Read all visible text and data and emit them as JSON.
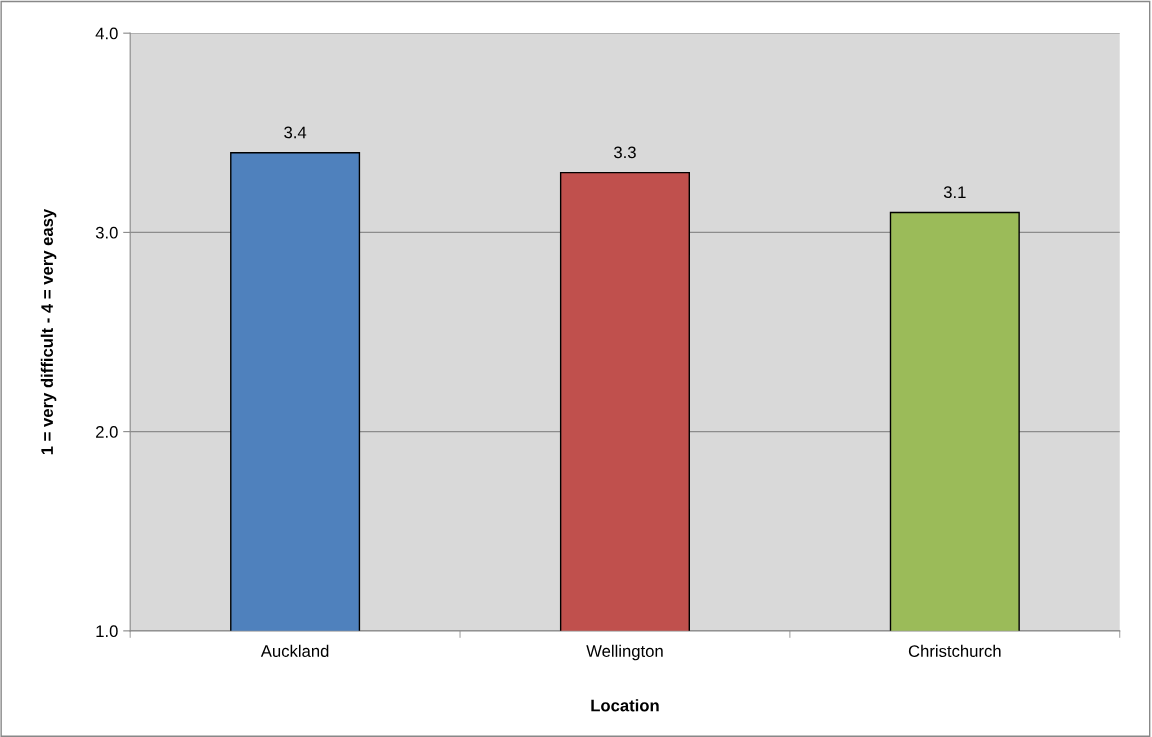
{
  "chart_data": {
    "type": "bar",
    "xlabel": "Location",
    "ylabel": "1 = very difficult - 4 = very easy",
    "categories": [
      "Auckland",
      "Wellington",
      "Christchurch"
    ],
    "values": [
      3.4,
      3.3,
      3.1
    ],
    "colors": [
      "#4f81bd",
      "#c0504d",
      "#9bbb59"
    ],
    "ylim": [
      1.0,
      4.0
    ],
    "yticks": [
      {
        "value": 1.0,
        "label": "1.0"
      },
      {
        "value": 2.0,
        "label": "2.0"
      },
      {
        "value": 3.0,
        "label": "3.0"
      },
      {
        "value": 4.0,
        "label": "4.0"
      }
    ],
    "grid": "y",
    "data_labels": true
  }
}
